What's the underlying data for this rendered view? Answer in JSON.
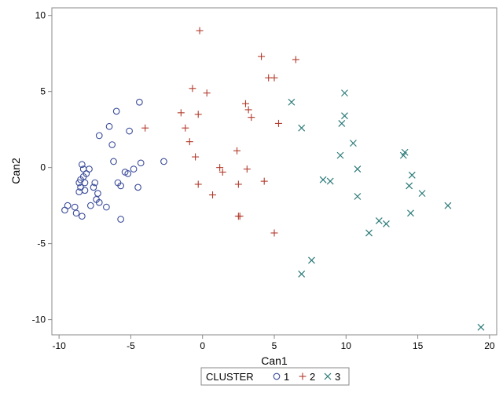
{
  "chart_data": {
    "type": "scatter",
    "title": "",
    "xlabel": "Can1",
    "ylabel": "Can2",
    "xlim": [
      -10.5,
      20.5
    ],
    "ylim": [
      -11,
      10.5
    ],
    "xticks": [
      -10,
      -5,
      0,
      5,
      10,
      15,
      20
    ],
    "yticks": [
      -10,
      -5,
      0,
      5,
      10
    ],
    "grid": false,
    "legend": {
      "position": "bottom-center",
      "title": "CLUSTER",
      "entries": [
        {
          "label": "1",
          "marker": "circle",
          "color": "#3b4c9a"
        },
        {
          "label": "2",
          "marker": "plus",
          "color": "#b23a2b"
        },
        {
          "label": "3",
          "marker": "x",
          "color": "#2b7a78"
        }
      ]
    },
    "series": [
      {
        "name": "1",
        "marker": "circle",
        "color": "#3b4c9a",
        "points": [
          [
            -9.6,
            -2.8
          ],
          [
            -9.4,
            -2.5
          ],
          [
            -8.9,
            -2.6
          ],
          [
            -8.8,
            -3.0
          ],
          [
            -8.6,
            -1.6
          ],
          [
            -8.6,
            -1.0
          ],
          [
            -8.5,
            -0.8
          ],
          [
            -8.5,
            -1.3
          ],
          [
            -8.4,
            -3.2
          ],
          [
            -8.4,
            0.2
          ],
          [
            -8.3,
            -0.1
          ],
          [
            -8.3,
            -0.6
          ],
          [
            -8.2,
            -1.0
          ],
          [
            -8.2,
            -1.5
          ],
          [
            -8.1,
            -0.4
          ],
          [
            -7.9,
            -0.1
          ],
          [
            -7.8,
            -2.5
          ],
          [
            -7.6,
            -1.3
          ],
          [
            -7.5,
            -1.0
          ],
          [
            -7.4,
            -2.1
          ],
          [
            -7.3,
            -1.7
          ],
          [
            -7.2,
            -2.3
          ],
          [
            -7.2,
            2.1
          ],
          [
            -6.7,
            -2.6
          ],
          [
            -6.5,
            2.7
          ],
          [
            -6.3,
            1.5
          ],
          [
            -6.2,
            0.4
          ],
          [
            -6.0,
            3.7
          ],
          [
            -5.9,
            -1.0
          ],
          [
            -5.7,
            -1.2
          ],
          [
            -5.7,
            -3.4
          ],
          [
            -5.4,
            -0.3
          ],
          [
            -5.2,
            -0.4
          ],
          [
            -5.1,
            2.4
          ],
          [
            -4.8,
            -0.1
          ],
          [
            -4.5,
            -1.3
          ],
          [
            -4.4,
            4.3
          ],
          [
            -4.3,
            0.3
          ],
          [
            -2.7,
            0.4
          ]
        ]
      },
      {
        "name": "2",
        "marker": "plus",
        "color": "#b23a2b",
        "points": [
          [
            -4.0,
            2.6
          ],
          [
            -1.5,
            3.6
          ],
          [
            -1.2,
            2.6
          ],
          [
            -0.9,
            1.7
          ],
          [
            -0.7,
            5.2
          ],
          [
            -0.5,
            0.7
          ],
          [
            -0.3,
            3.5
          ],
          [
            -0.3,
            -1.1
          ],
          [
            -0.2,
            9.0
          ],
          [
            0.3,
            4.9
          ],
          [
            0.7,
            -1.8
          ],
          [
            1.2,
            0.0
          ],
          [
            1.4,
            -0.3
          ],
          [
            2.4,
            1.1
          ],
          [
            2.5,
            -1.1
          ],
          [
            2.6,
            -3.2
          ],
          [
            3.0,
            4.2
          ],
          [
            3.1,
            -0.1
          ],
          [
            3.2,
            3.8
          ],
          [
            3.4,
            3.3
          ],
          [
            4.1,
            7.3
          ],
          [
            4.3,
            -0.9
          ],
          [
            4.6,
            5.9
          ],
          [
            5.0,
            -4.3
          ],
          [
            5.0,
            5.9
          ],
          [
            5.3,
            2.9
          ],
          [
            6.5,
            7.1
          ],
          [
            2.5,
            -3.2
          ]
        ]
      },
      {
        "name": "3",
        "marker": "x",
        "color": "#2b7a78",
        "points": [
          [
            6.2,
            4.3
          ],
          [
            6.9,
            2.6
          ],
          [
            6.9,
            -7.0
          ],
          [
            7.6,
            -6.1
          ],
          [
            8.4,
            -0.8
          ],
          [
            8.9,
            -0.9
          ],
          [
            9.6,
            0.8
          ],
          [
            9.7,
            2.9
          ],
          [
            9.9,
            4.9
          ],
          [
            9.9,
            3.4
          ],
          [
            10.5,
            1.6
          ],
          [
            10.8,
            -0.1
          ],
          [
            10.8,
            -1.9
          ],
          [
            11.6,
            -4.3
          ],
          [
            12.3,
            -3.5
          ],
          [
            12.8,
            -3.7
          ],
          [
            14.0,
            0.8
          ],
          [
            14.1,
            1.0
          ],
          [
            14.4,
            -1.2
          ],
          [
            14.5,
            -3.0
          ],
          [
            14.6,
            -0.5
          ],
          [
            15.3,
            -1.7
          ],
          [
            17.1,
            -2.5
          ],
          [
            19.4,
            -10.5
          ]
        ]
      }
    ]
  }
}
